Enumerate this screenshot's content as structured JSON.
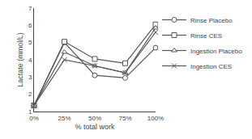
{
  "chart_data": {
    "type": "line",
    "x": [
      0,
      25,
      50,
      75,
      100
    ],
    "series": [
      {
        "name": "Rinse Placebo",
        "color": "#555555",
        "marker": "circle",
        "line_style": "solid",
        "values": [
          1.35,
          5.0,
          3.1,
          2.95,
          4.7
        ]
      },
      {
        "name": "Rinse CES",
        "color": "#555555",
        "marker": "square",
        "line_style": "solid",
        "values": [
          1.35,
          5.05,
          4.05,
          3.8,
          6.05
        ]
      },
      {
        "name": "Ingestion Placebo",
        "color": "#555555",
        "marker": "triangle",
        "line_style": "solid",
        "values": [
          1.35,
          4.45,
          3.65,
          3.25,
          5.85
        ]
      },
      {
        "name": "Ingestion CES",
        "color": "#555555",
        "marker": "x",
        "line_style": "solid",
        "values": [
          1.35,
          4.0,
          3.65,
          3.25,
          5.6
        ]
      }
    ],
    "xlabel": "% total work",
    "ylabel": "Lactate (mmol/L)",
    "xlim": [
      0,
      100
    ],
    "xticks": [
      {
        "value": 0,
        "label": "0%"
      },
      {
        "value": 25,
        "label": "25%"
      },
      {
        "value": 50,
        "label": "50%"
      },
      {
        "value": 75,
        "label": "75%"
      },
      {
        "value": 100,
        "label": "100%"
      }
    ],
    "ylim": [
      1,
      7
    ],
    "yticks": [
      1,
      2,
      3,
      4,
      5,
      6,
      7
    ],
    "grid": false,
    "legend": "right"
  }
}
